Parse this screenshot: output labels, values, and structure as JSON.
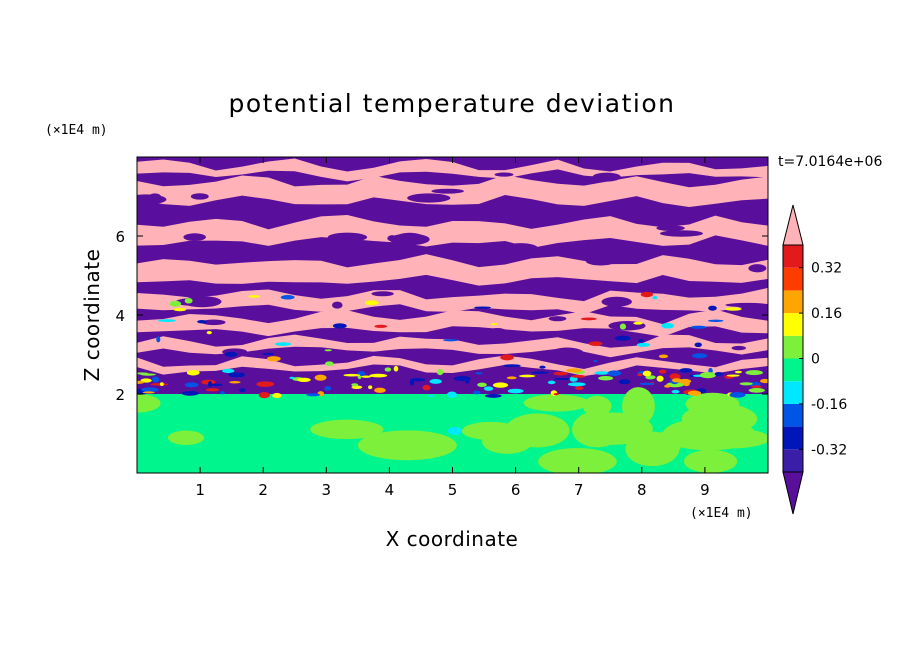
{
  "chart_data": {
    "type": "heatmap",
    "title": "potential temperature deviation",
    "time_label": "t=7.0164e+06",
    "x_axis": {
      "label": "X coordinate",
      "unit_label": "(×1E4 m)",
      "range": [
        0,
        10
      ],
      "ticks": [
        1,
        2,
        3,
        4,
        5,
        6,
        7,
        8,
        9
      ]
    },
    "y_axis": {
      "label": "Z coordinate",
      "unit_label": "(×1E4 m)",
      "range": [
        0,
        8
      ],
      "ticks": [
        2,
        4,
        6
      ]
    },
    "colorbar": {
      "levels": [
        -0.4,
        -0.32,
        -0.24,
        -0.16,
        -0.08,
        0,
        0.08,
        0.16,
        0.24,
        0.32,
        0.4
      ],
      "colors": [
        "#5a0f9c",
        "#3a1ea8",
        "#0016b8",
        "#0055e6",
        "#00e8ff",
        "#00f58c",
        "#7cf03a",
        "#ffff00",
        "#ffa500",
        "#ff3c00",
        "#e31a1c",
        "#ffb3b8"
      ],
      "tick_labels": [
        "0.32",
        "0.16",
        "0",
        "-0.16",
        "-0.32"
      ],
      "tick_values": [
        0.32,
        0.16,
        0,
        -0.16,
        -0.32
      ],
      "extend": "both"
    },
    "regions": [
      {
        "z_range": [
          0,
          2
        ],
        "description": "mostly 0 to 0.08 with patches of -0.08 to 0"
      },
      {
        "z_range": [
          2,
          2.5
        ],
        "description": "mixed, strong deviations -0.4 to 0.4"
      },
      {
        "z_range": [
          2.5,
          8
        ],
        "description": "alternating horizontal bands of > 0.4 and < -0.4"
      }
    ]
  },
  "colors": {
    "pink": "#ffb3b8",
    "purple": "#5a0f9c",
    "green": "#00f58c",
    "lime": "#7cf03a"
  }
}
